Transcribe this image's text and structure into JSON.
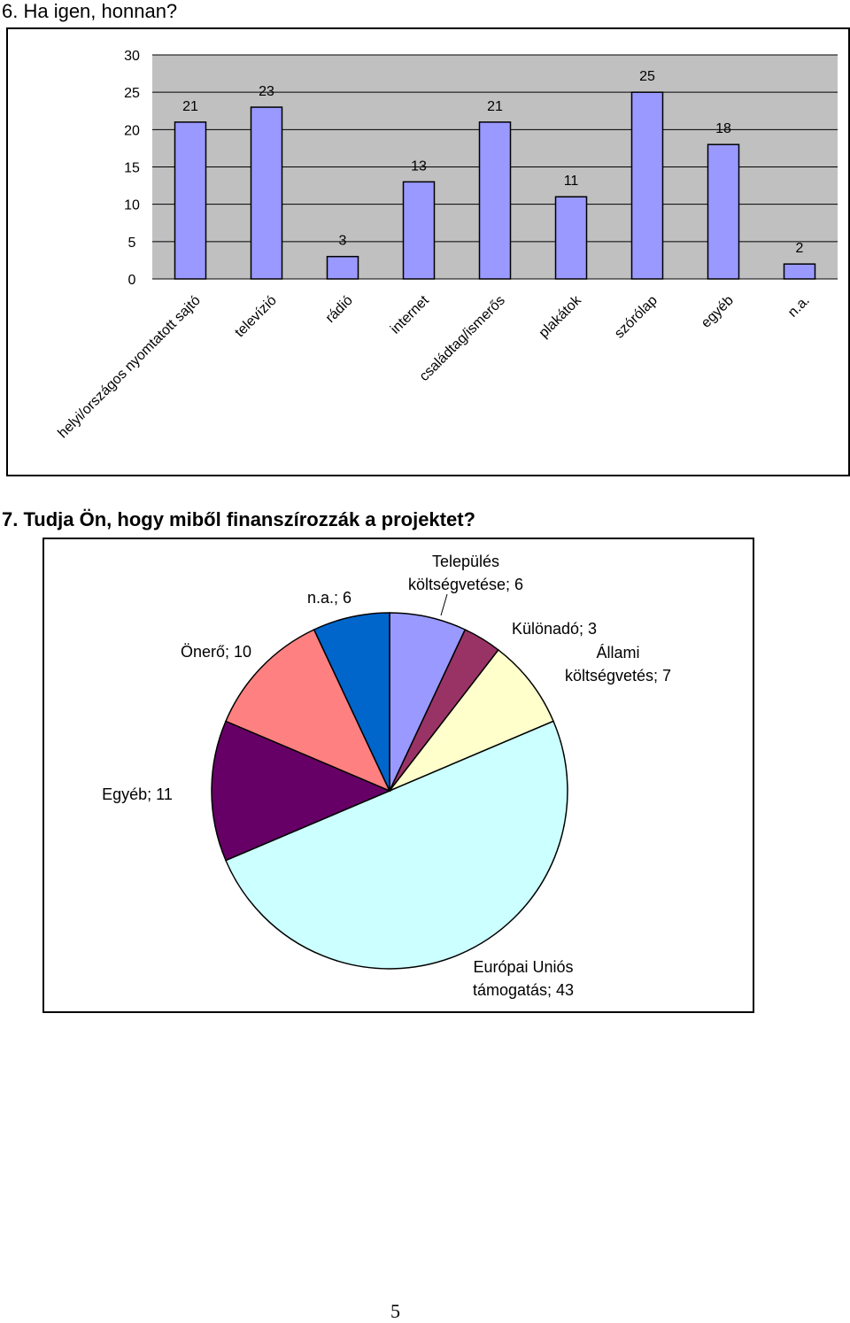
{
  "page": {
    "number": "5"
  },
  "question6": {
    "title": "6. Ha igen, honnan?"
  },
  "question7": {
    "title": "7. Tudja Ön, hogy miből finanszírozzák a projektet?"
  },
  "chart_data": [
    {
      "type": "bar",
      "title": "",
      "xlabel": "",
      "ylabel": "",
      "ylim": [
        0,
        30
      ],
      "yticks": [
        0,
        5,
        10,
        15,
        20,
        25,
        30
      ],
      "grid": true,
      "legend": "none",
      "colors": {
        "plot_background": "#c0c0c0",
        "bar_fill": "#9999ff",
        "bar_stroke": "#000000",
        "gridline": "#000000"
      },
      "categories": [
        "helyi/országos nyomtatott sajtó",
        "televízió",
        "rádió",
        "internet",
        "családtag/ismerős",
        "plakátok",
        "szórólap",
        "egyéb",
        "n.a."
      ],
      "values": [
        21,
        23,
        3,
        13,
        21,
        11,
        25,
        18,
        2
      ]
    },
    {
      "type": "pie",
      "title": "",
      "legend": "none",
      "slices": [
        {
          "label": "Település költségvetése",
          "value": 6,
          "display": "Település\nköltségvetése; 6",
          "color": "#9999ff"
        },
        {
          "label": "Különadó",
          "value": 3,
          "display": "Különadó; 3",
          "color": "#993366"
        },
        {
          "label": "Állami költségvetés",
          "value": 7,
          "display": "Állami\nköltségvetés; 7",
          "color": "#ffffcc"
        },
        {
          "label": "Európai Uniós támogatás",
          "value": 43,
          "display": "Európai Uniós\ntámogatás; 43",
          "color": "#ccffff"
        },
        {
          "label": "Egyéb",
          "value": 11,
          "display": "Egyéb; 11",
          "color": "#660066"
        },
        {
          "label": "Önerő",
          "value": 10,
          "display": "Önerő; 10",
          "color": "#ff8080"
        },
        {
          "label": "n.a.",
          "value": 6,
          "display": "n.a.; 6",
          "color": "#0066cc"
        }
      ]
    }
  ]
}
